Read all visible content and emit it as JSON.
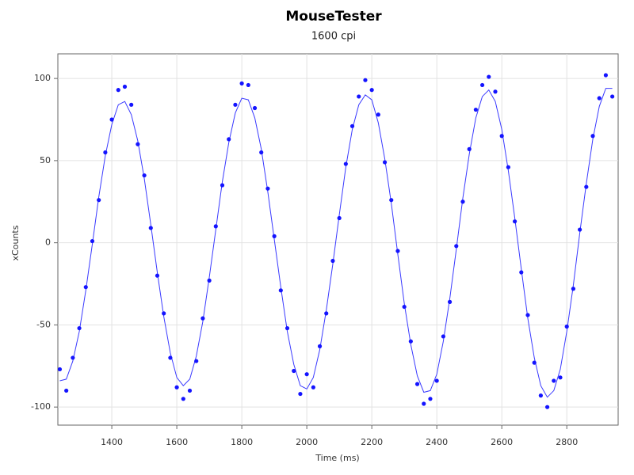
{
  "chart_data": {
    "type": "scatter",
    "title": "MouseTester",
    "subtitle": "1600 cpi",
    "x_label": "Time (ms)",
    "y_label": "xCounts",
    "x": [
      1240,
      1260,
      1280,
      1300,
      1320,
      1340,
      1360,
      1380,
      1400,
      1420,
      1440,
      1460,
      1480,
      1500,
      1520,
      1540,
      1560,
      1580,
      1600,
      1620,
      1640,
      1660,
      1680,
      1700,
      1720,
      1740,
      1760,
      1780,
      1800,
      1820,
      1840,
      1860,
      1880,
      1900,
      1920,
      1940,
      1960,
      1980,
      2000,
      2020,
      2040,
      2060,
      2080,
      2100,
      2120,
      2140,
      2160,
      2180,
      2200,
      2220,
      2240,
      2260,
      2280,
      2300,
      2320,
      2340,
      2360,
      2380,
      2400,
      2420,
      2440,
      2460,
      2480,
      2500,
      2520,
      2540,
      2560,
      2580,
      2600,
      2620,
      2640,
      2660,
      2680,
      2700,
      2720,
      2740,
      2760,
      2780,
      2800,
      2820,
      2840,
      2860,
      2880,
      2900,
      2920,
      2940
    ],
    "series": [
      {
        "type": "line",
        "color": "#3a3aff",
        "values": [
          -84,
          -83,
          -72,
          -54,
          -29,
          -1,
          28,
          53,
          72,
          84,
          86,
          78,
          62,
          39,
          11,
          -18,
          -45,
          -67,
          -82,
          -87,
          -83,
          -69,
          -48,
          -21,
          8,
          37,
          61,
          79,
          88,
          87,
          76,
          57,
          31,
          2,
          -27,
          -54,
          -74,
          -87,
          -89,
          -82,
          -65,
          -41,
          -13,
          17,
          46,
          69,
          84,
          90,
          87,
          73,
          51,
          24,
          -7,
          -37,
          -62,
          -81,
          -91,
          -90,
          -80,
          -60,
          -34,
          -4,
          27,
          54,
          76,
          89,
          93,
          86,
          69,
          44,
          15,
          -16,
          -46,
          -70,
          -87,
          -94,
          -90,
          -77,
          -54,
          -26,
          6,
          36,
          63,
          83,
          94,
          94
        ]
      },
      {
        "type": "scatter",
        "color": "#1414ff",
        "values": [
          -77,
          -90,
          -70,
          -52,
          -27,
          1,
          26,
          55,
          75,
          93,
          95,
          84,
          60,
          41,
          9,
          -20,
          -43,
          -70,
          -88,
          -95,
          -90,
          -72,
          -46,
          -23,
          10,
          35,
          63,
          84,
          97,
          96,
          82,
          55,
          33,
          4,
          -29,
          -52,
          -78,
          -92,
          -80,
          -88,
          -63,
          -43,
          -11,
          15,
          48,
          71,
          89,
          99,
          93,
          78,
          49,
          26,
          -5,
          -39,
          -60,
          -86,
          -98,
          -95,
          -84,
          -57,
          -36,
          -2,
          25,
          57,
          81,
          96,
          101,
          92,
          65,
          46,
          13,
          -18,
          -44,
          -73,
          -93,
          -100,
          -84,
          -82,
          -51,
          -28,
          8,
          34,
          65,
          88,
          102,
          89
        ]
      }
    ],
    "xlim": [
      1234,
      2958
    ],
    "ylim": [
      -111,
      115
    ],
    "xticks": [
      1400,
      1600,
      1800,
      2000,
      2200,
      2400,
      2600,
      2800
    ],
    "yticks": [
      -100,
      -50,
      0,
      50,
      100
    ],
    "grid": true
  }
}
